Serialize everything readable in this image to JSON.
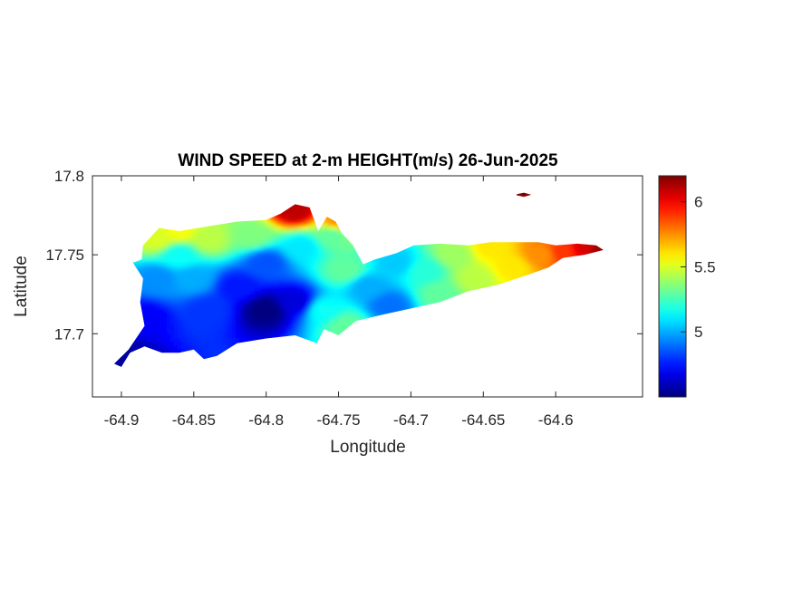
{
  "chart_data": {
    "type": "heatmap",
    "title": "WIND SPEED at 2-m HEIGHT(m/s) 26-Jun-2025",
    "xlabel": "Longitude",
    "ylabel": "Latitude",
    "xlim": [
      -64.92,
      -64.54
    ],
    "ylim": [
      17.66,
      17.8
    ],
    "xticks": [
      -64.9,
      -64.85,
      -64.8,
      -64.75,
      -64.7,
      -64.65,
      -64.6
    ],
    "xtick_labels": [
      "-64.9",
      "-64.85",
      "-64.8",
      "-64.75",
      "-64.7",
      "-64.65",
      "-64.6"
    ],
    "yticks": [
      17.7,
      17.75,
      17.8
    ],
    "ytick_labels": [
      "17.7",
      "17.75",
      "17.8"
    ],
    "colorbar": {
      "colormap": "jet",
      "range": [
        4.5,
        6.2
      ],
      "ticks": [
        5,
        5.5,
        6
      ],
      "tick_labels": [
        "5",
        "5.5",
        "6"
      ]
    },
    "island_outline": [
      [
        -64.9,
        17.679
      ],
      [
        -64.894,
        17.688
      ],
      [
        -64.884,
        17.692
      ],
      [
        -64.872,
        17.688
      ],
      [
        -64.86,
        17.688
      ],
      [
        -64.85,
        17.69
      ],
      [
        -64.843,
        17.684
      ],
      [
        -64.834,
        17.686
      ],
      [
        -64.82,
        17.694
      ],
      [
        -64.8,
        17.697
      ],
      [
        -64.78,
        17.699
      ],
      [
        -64.765,
        17.694
      ],
      [
        -64.76,
        17.703
      ],
      [
        -64.75,
        17.699
      ],
      [
        -64.738,
        17.708
      ],
      [
        -64.72,
        17.712
      ],
      [
        -64.7,
        17.716
      ],
      [
        -64.68,
        17.72
      ],
      [
        -64.66,
        17.727
      ],
      [
        -64.64,
        17.731
      ],
      [
        -64.62,
        17.737
      ],
      [
        -64.605,
        17.742
      ],
      [
        -64.595,
        17.748
      ],
      [
        -64.58,
        17.75
      ],
      [
        -64.567,
        17.753
      ],
      [
        -64.572,
        17.756
      ],
      [
        -64.585,
        17.757
      ],
      [
        -64.6,
        17.756
      ],
      [
        -64.612,
        17.758
      ],
      [
        -64.63,
        17.758
      ],
      [
        -64.645,
        17.758
      ],
      [
        -64.66,
        17.756
      ],
      [
        -64.68,
        17.757
      ],
      [
        -64.698,
        17.756
      ],
      [
        -64.71,
        17.751
      ],
      [
        -64.725,
        17.747
      ],
      [
        -64.733,
        17.744
      ],
      [
        -64.74,
        17.756
      ],
      [
        -64.748,
        17.764
      ],
      [
        -64.752,
        17.771
      ],
      [
        -64.758,
        17.774
      ],
      [
        -64.764,
        17.765
      ],
      [
        -64.77,
        17.78
      ],
      [
        -64.78,
        17.782
      ],
      [
        -64.79,
        17.776
      ],
      [
        -64.8,
        17.772
      ],
      [
        -64.82,
        17.771
      ],
      [
        -64.84,
        17.768
      ],
      [
        -64.86,
        17.765
      ],
      [
        -64.874,
        17.767
      ],
      [
        -64.88,
        17.761
      ],
      [
        -64.885,
        17.756
      ],
      [
        -64.886,
        17.747
      ],
      [
        -64.892,
        17.745
      ],
      [
        -64.885,
        17.735
      ],
      [
        -64.887,
        17.72
      ],
      [
        -64.884,
        17.705
      ],
      [
        -64.895,
        17.69
      ],
      [
        -64.905,
        17.681
      ],
      [
        -64.9,
        17.679
      ]
    ],
    "islet_outline": [
      [
        -64.627,
        17.788
      ],
      [
        -64.622,
        17.789
      ],
      [
        -64.618,
        17.788
      ],
      [
        -64.622,
        17.787
      ]
    ],
    "wind_speed_samples": [
      {
        "x": -64.9,
        "y": 17.685,
        "v": 4.55
      },
      {
        "x": -64.885,
        "y": 17.71,
        "v": 4.7
      },
      {
        "x": -64.875,
        "y": 17.735,
        "v": 4.95
      },
      {
        "x": -64.86,
        "y": 17.75,
        "v": 5.15
      },
      {
        "x": -64.875,
        "y": 17.76,
        "v": 5.5
      },
      {
        "x": -64.86,
        "y": 17.765,
        "v": 5.55
      },
      {
        "x": -64.85,
        "y": 17.735,
        "v": 5.0
      },
      {
        "x": -64.84,
        "y": 17.715,
        "v": 4.8
      },
      {
        "x": -64.82,
        "y": 17.73,
        "v": 4.75
      },
      {
        "x": -64.8,
        "y": 17.715,
        "v": 4.5
      },
      {
        "x": -64.8,
        "y": 17.745,
        "v": 4.85
      },
      {
        "x": -64.84,
        "y": 17.76,
        "v": 5.45
      },
      {
        "x": -64.81,
        "y": 17.762,
        "v": 5.35
      },
      {
        "x": -64.78,
        "y": 17.778,
        "v": 6.1
      },
      {
        "x": -64.775,
        "y": 17.755,
        "v": 5.1
      },
      {
        "x": -64.78,
        "y": 17.72,
        "v": 4.65
      },
      {
        "x": -64.76,
        "y": 17.715,
        "v": 5.15
      },
      {
        "x": -64.755,
        "y": 17.762,
        "v": 5.3
      },
      {
        "x": -64.75,
        "y": 17.772,
        "v": 5.75
      },
      {
        "x": -64.745,
        "y": 17.74,
        "v": 5.3
      },
      {
        "x": -64.745,
        "y": 17.705,
        "v": 5.3
      },
      {
        "x": -64.73,
        "y": 17.73,
        "v": 5.0
      },
      {
        "x": -64.715,
        "y": 17.718,
        "v": 4.9
      },
      {
        "x": -64.71,
        "y": 17.745,
        "v": 5.05
      },
      {
        "x": -64.69,
        "y": 17.74,
        "v": 5.2
      },
      {
        "x": -64.68,
        "y": 17.725,
        "v": 5.3
      },
      {
        "x": -64.67,
        "y": 17.75,
        "v": 5.4
      },
      {
        "x": -64.655,
        "y": 17.735,
        "v": 5.45
      },
      {
        "x": -64.645,
        "y": 17.755,
        "v": 5.6
      },
      {
        "x": -64.63,
        "y": 17.742,
        "v": 5.6
      },
      {
        "x": -64.61,
        "y": 17.75,
        "v": 5.75
      },
      {
        "x": -64.595,
        "y": 17.752,
        "v": 5.9
      },
      {
        "x": -64.58,
        "y": 17.754,
        "v": 6.05
      },
      {
        "x": -64.57,
        "y": 17.754,
        "v": 6.15
      },
      {
        "x": -64.622,
        "y": 17.788,
        "v": 6.2
      }
    ]
  }
}
